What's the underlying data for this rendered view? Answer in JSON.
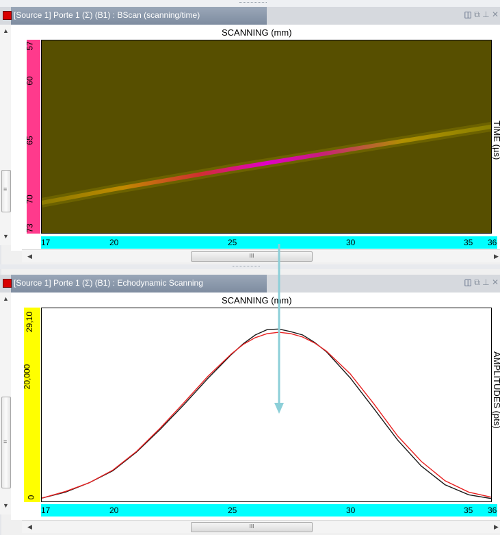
{
  "panels": {
    "bscan": {
      "title": "[Source 1] Porte 1 (Σ) (B1) : BScan (scanning/time)",
      "x_axis_title": "SCANNING (mm)",
      "y_axis_title": "TIME (µs)",
      "x_ticks": [
        "17",
        "20",
        "25",
        "30",
        "35",
        "36"
      ],
      "y_ticks": [
        "57",
        "60",
        "65",
        "70",
        "73"
      ],
      "x_axis_color": "#00ffff",
      "y_axis_color": "#ff3a8c"
    },
    "echo": {
      "title": "[Source 1] Porte 1 (Σ) (B1) : Echodynamic Scanning",
      "x_axis_title": "SCANNING (mm)",
      "y_axis_title": "AMPLITUDES (pts)",
      "x_ticks": [
        "17",
        "20",
        "25",
        "30",
        "35",
        "36"
      ],
      "y_ticks": [
        "29,10",
        "20,000",
        "0"
      ],
      "x_axis_color": "#00ffff",
      "y_axis_color": "#ffff00"
    }
  },
  "icons": {
    "panel_icon": "red-square-icon",
    "cylinder": "cylinder-icon",
    "restore": "restore-window-icon",
    "pin": "pin-icon",
    "close": "close-icon",
    "scroll_grip": "III",
    "vgrip": "≡"
  },
  "chart_data": [
    {
      "type": "heatmap",
      "title": "SCANNING (mm)",
      "xlabel": "SCANNING (mm)",
      "ylabel": "TIME (µs)",
      "xlim": [
        17,
        36
      ],
      "ylim": [
        73,
        57
      ],
      "ridge": {
        "x": [
          17,
          20,
          25,
          30,
          36
        ],
        "y": [
          70.4,
          69.3,
          67.6,
          66.0,
          64.1
        ]
      },
      "peak_x": 27
    },
    {
      "type": "line",
      "title": "SCANNING (mm)",
      "xlabel": "SCANNING (mm)",
      "ylabel": "AMPLITUDES (pts)",
      "xlim": [
        17,
        36
      ],
      "ylim": [
        0,
        29100
      ],
      "series": [
        {
          "color": "#1a1a1a",
          "x": [
            17,
            18,
            19,
            20,
            21,
            22,
            23,
            24,
            25,
            25.5,
            26,
            26.5,
            27,
            27.5,
            28,
            28.5,
            29,
            30,
            31,
            32,
            33,
            34,
            35,
            36
          ],
          "values": [
            700,
            1600,
            3000,
            4800,
            7600,
            11000,
            14700,
            18600,
            22200,
            23800,
            25100,
            25900,
            26000,
            25600,
            25100,
            24000,
            22600,
            18700,
            14100,
            9400,
            5500,
            2700,
            1200,
            600
          ]
        },
        {
          "color": "#e82020",
          "x": [
            17,
            18,
            19,
            20,
            21,
            22,
            23,
            24,
            25,
            25.5,
            26,
            26.5,
            27,
            27.5,
            28,
            28.5,
            29,
            30,
            31,
            32,
            33,
            34,
            35,
            36
          ],
          "values": [
            700,
            1700,
            3000,
            4900,
            7700,
            11200,
            15000,
            18900,
            22300,
            23700,
            24700,
            25300,
            25500,
            25300,
            24800,
            23900,
            22700,
            19300,
            14800,
            10000,
            6200,
            3300,
            1600,
            800
          ]
        }
      ]
    }
  ]
}
